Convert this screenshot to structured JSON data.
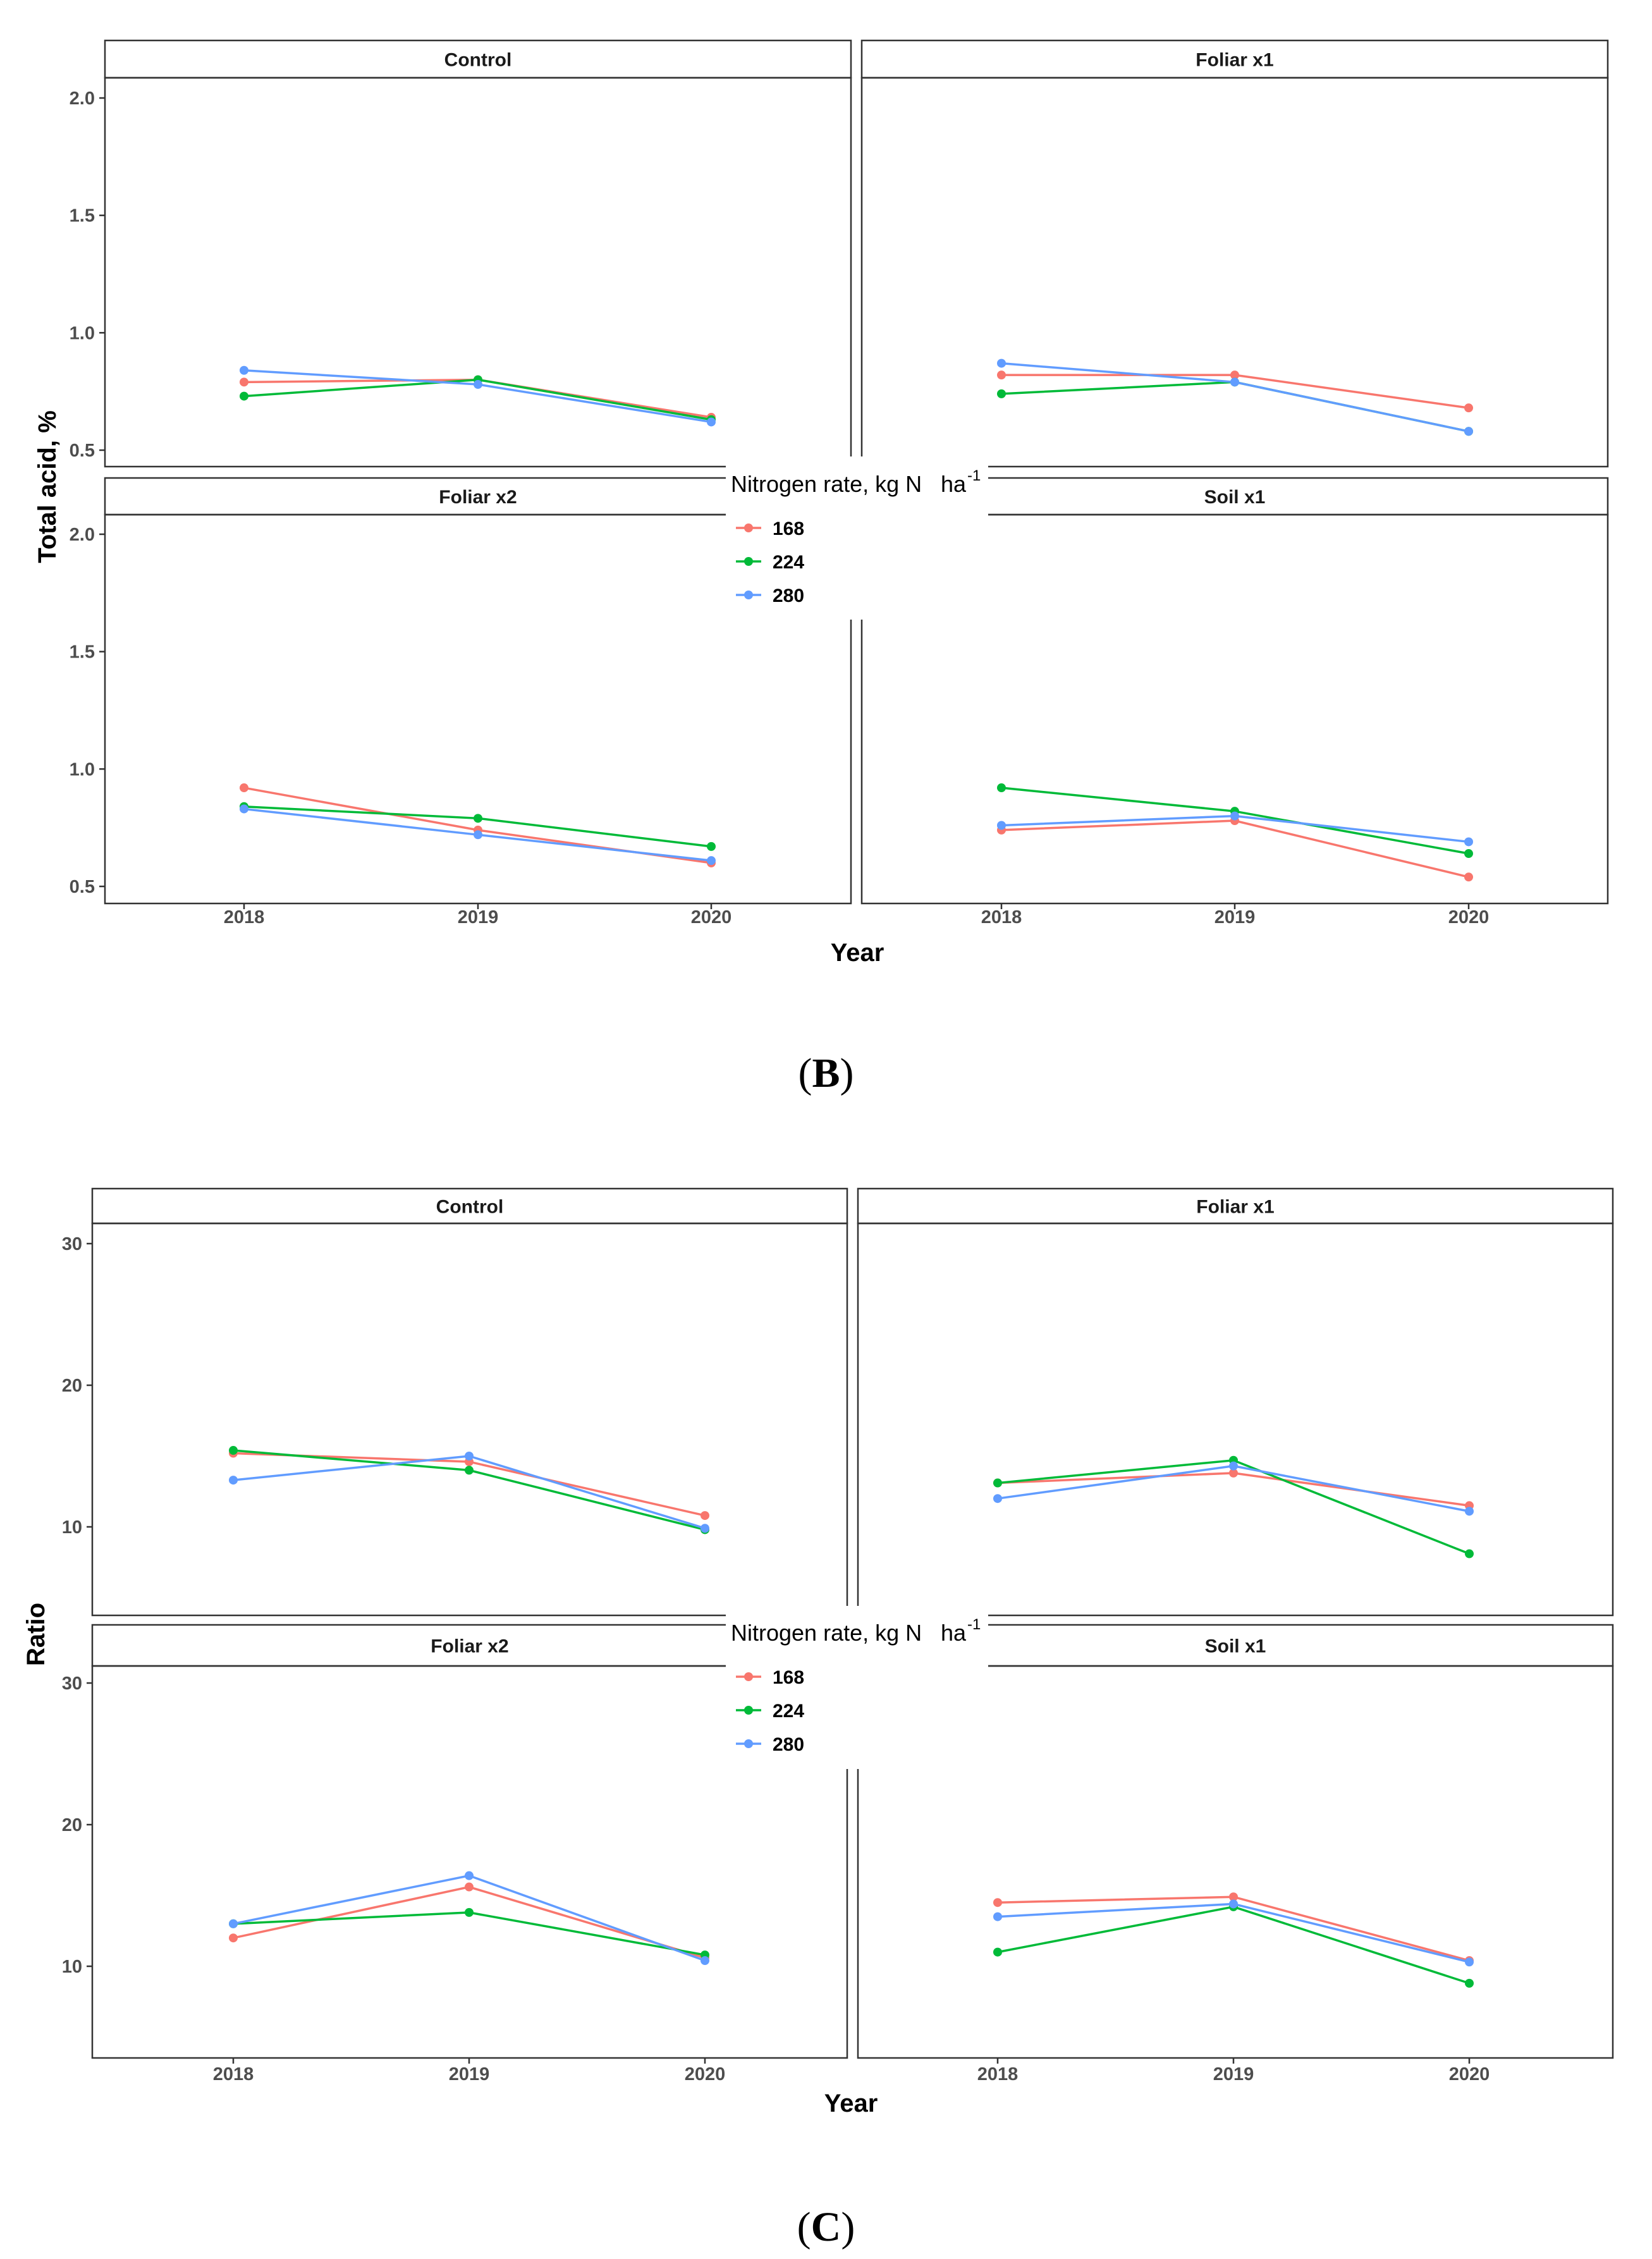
{
  "legend": {
    "title": "Nitrogen rate, kg N",
    "title_unit": "ha",
    "title_exponent": "-1",
    "entries": [
      {
        "label": "168",
        "color": "#F8766D"
      },
      {
        "label": "224",
        "color": "#00BA38"
      },
      {
        "label": "280",
        "color": "#619CFF"
      }
    ]
  },
  "panel_labels": [
    {
      "open": "(",
      "letter": "B",
      "close": ")"
    },
    {
      "open": "(",
      "letter": "C",
      "close": ")"
    }
  ],
  "chart_data": [
    {
      "type": "line",
      "title": "",
      "xlabel": "Year",
      "ylabel": "Total acid, %",
      "x": [
        "2018",
        "2019",
        "2020"
      ],
      "ylim": [
        0.45,
        2.08
      ],
      "yticks": [
        "0.5",
        "1.0",
        "1.5",
        "2.0"
      ],
      "grid": false,
      "facets": [
        {
          "name": "Control",
          "series": [
            {
              "name": "168",
              "values": [
                0.79,
                0.8,
                0.64
              ]
            },
            {
              "name": "224",
              "values": [
                0.73,
                0.8,
                0.63
              ]
            },
            {
              "name": "280",
              "values": [
                0.84,
                0.78,
                0.62
              ]
            }
          ]
        },
        {
          "name": "Foliar x1",
          "series": [
            {
              "name": "168",
              "values": [
                0.82,
                0.82,
                0.68
              ]
            },
            {
              "name": "224",
              "values": [
                0.74,
                0.79,
                0.58
              ]
            },
            {
              "name": "280",
              "values": [
                0.87,
                0.79,
                0.58
              ]
            }
          ]
        },
        {
          "name": "Foliar x2",
          "series": [
            {
              "name": "168",
              "values": [
                0.92,
                0.74,
                0.6
              ]
            },
            {
              "name": "224",
              "values": [
                0.84,
                0.79,
                0.67
              ]
            },
            {
              "name": "280",
              "values": [
                0.83,
                0.72,
                0.61
              ]
            }
          ]
        },
        {
          "name": "Soil x1",
          "series": [
            {
              "name": "168",
              "values": [
                0.74,
                0.78,
                0.54
              ]
            },
            {
              "name": "224",
              "values": [
                0.92,
                0.82,
                0.64
              ]
            },
            {
              "name": "280",
              "values": [
                0.76,
                0.8,
                0.69
              ]
            }
          ]
        }
      ]
    },
    {
      "type": "line",
      "title": "",
      "xlabel": "Year",
      "ylabel": "Ratio",
      "x": [
        "2018",
        "2019",
        "2020"
      ],
      "ylim": [
        4.0,
        31.3
      ],
      "yticks": [
        "10",
        "20",
        "30"
      ],
      "grid": false,
      "facets": [
        {
          "name": "Control",
          "series": [
            {
              "name": "168",
              "values": [
                15.2,
                14.6,
                10.8
              ]
            },
            {
              "name": "224",
              "values": [
                15.4,
                14.0,
                9.8
              ]
            },
            {
              "name": "280",
              "values": [
                13.3,
                15.0,
                9.9
              ]
            }
          ]
        },
        {
          "name": "Foliar x1",
          "series": [
            {
              "name": "168",
              "values": [
                13.1,
                13.8,
                11.5
              ]
            },
            {
              "name": "224",
              "values": [
                13.1,
                14.7,
                8.1
              ]
            },
            {
              "name": "280",
              "values": [
                12.0,
                14.3,
                11.1
              ]
            }
          ]
        },
        {
          "name": "Foliar x2",
          "series": [
            {
              "name": "168",
              "values": [
                12.0,
                15.6,
                10.6
              ]
            },
            {
              "name": "224",
              "values": [
                13.0,
                13.8,
                10.8
              ]
            },
            {
              "name": "280",
              "values": [
                13.0,
                16.4,
                10.4
              ]
            }
          ]
        },
        {
          "name": "Soil x1",
          "series": [
            {
              "name": "168",
              "values": [
                14.5,
                14.9,
                10.4
              ]
            },
            {
              "name": "224",
              "values": [
                11.0,
                14.2,
                8.8
              ]
            },
            {
              "name": "280",
              "values": [
                13.5,
                14.4,
                10.3
              ]
            }
          ]
        }
      ]
    }
  ]
}
